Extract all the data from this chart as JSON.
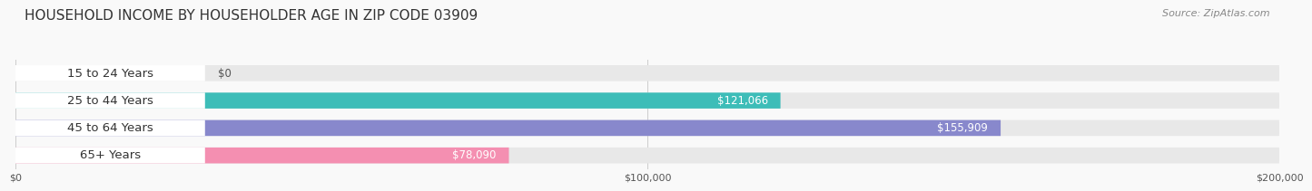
{
  "title": "HOUSEHOLD INCOME BY HOUSEHOLDER AGE IN ZIP CODE 03909",
  "source": "Source: ZipAtlas.com",
  "categories": [
    "15 to 24 Years",
    "25 to 44 Years",
    "45 to 64 Years",
    "65+ Years"
  ],
  "values": [
    0,
    121066,
    155909,
    78090
  ],
  "value_labels": [
    "$0",
    "$121,066",
    "$155,909",
    "$78,090"
  ],
  "bar_colors": [
    "#c9aed6",
    "#3dbdb8",
    "#8888cc",
    "#f48fb1"
  ],
  "bar_bg_color": "#e8e8e8",
  "label_bg_color": "#ffffff",
  "xlim": [
    0,
    200000
  ],
  "xticks": [
    0,
    100000,
    200000
  ],
  "xticklabels": [
    "$0",
    "$100,000",
    "$200,000"
  ],
  "background_color": "#f9f9f9",
  "title_fontsize": 11,
  "source_fontsize": 8,
  "label_fontsize": 9.5,
  "value_fontsize": 8.5,
  "tick_fontsize": 8
}
